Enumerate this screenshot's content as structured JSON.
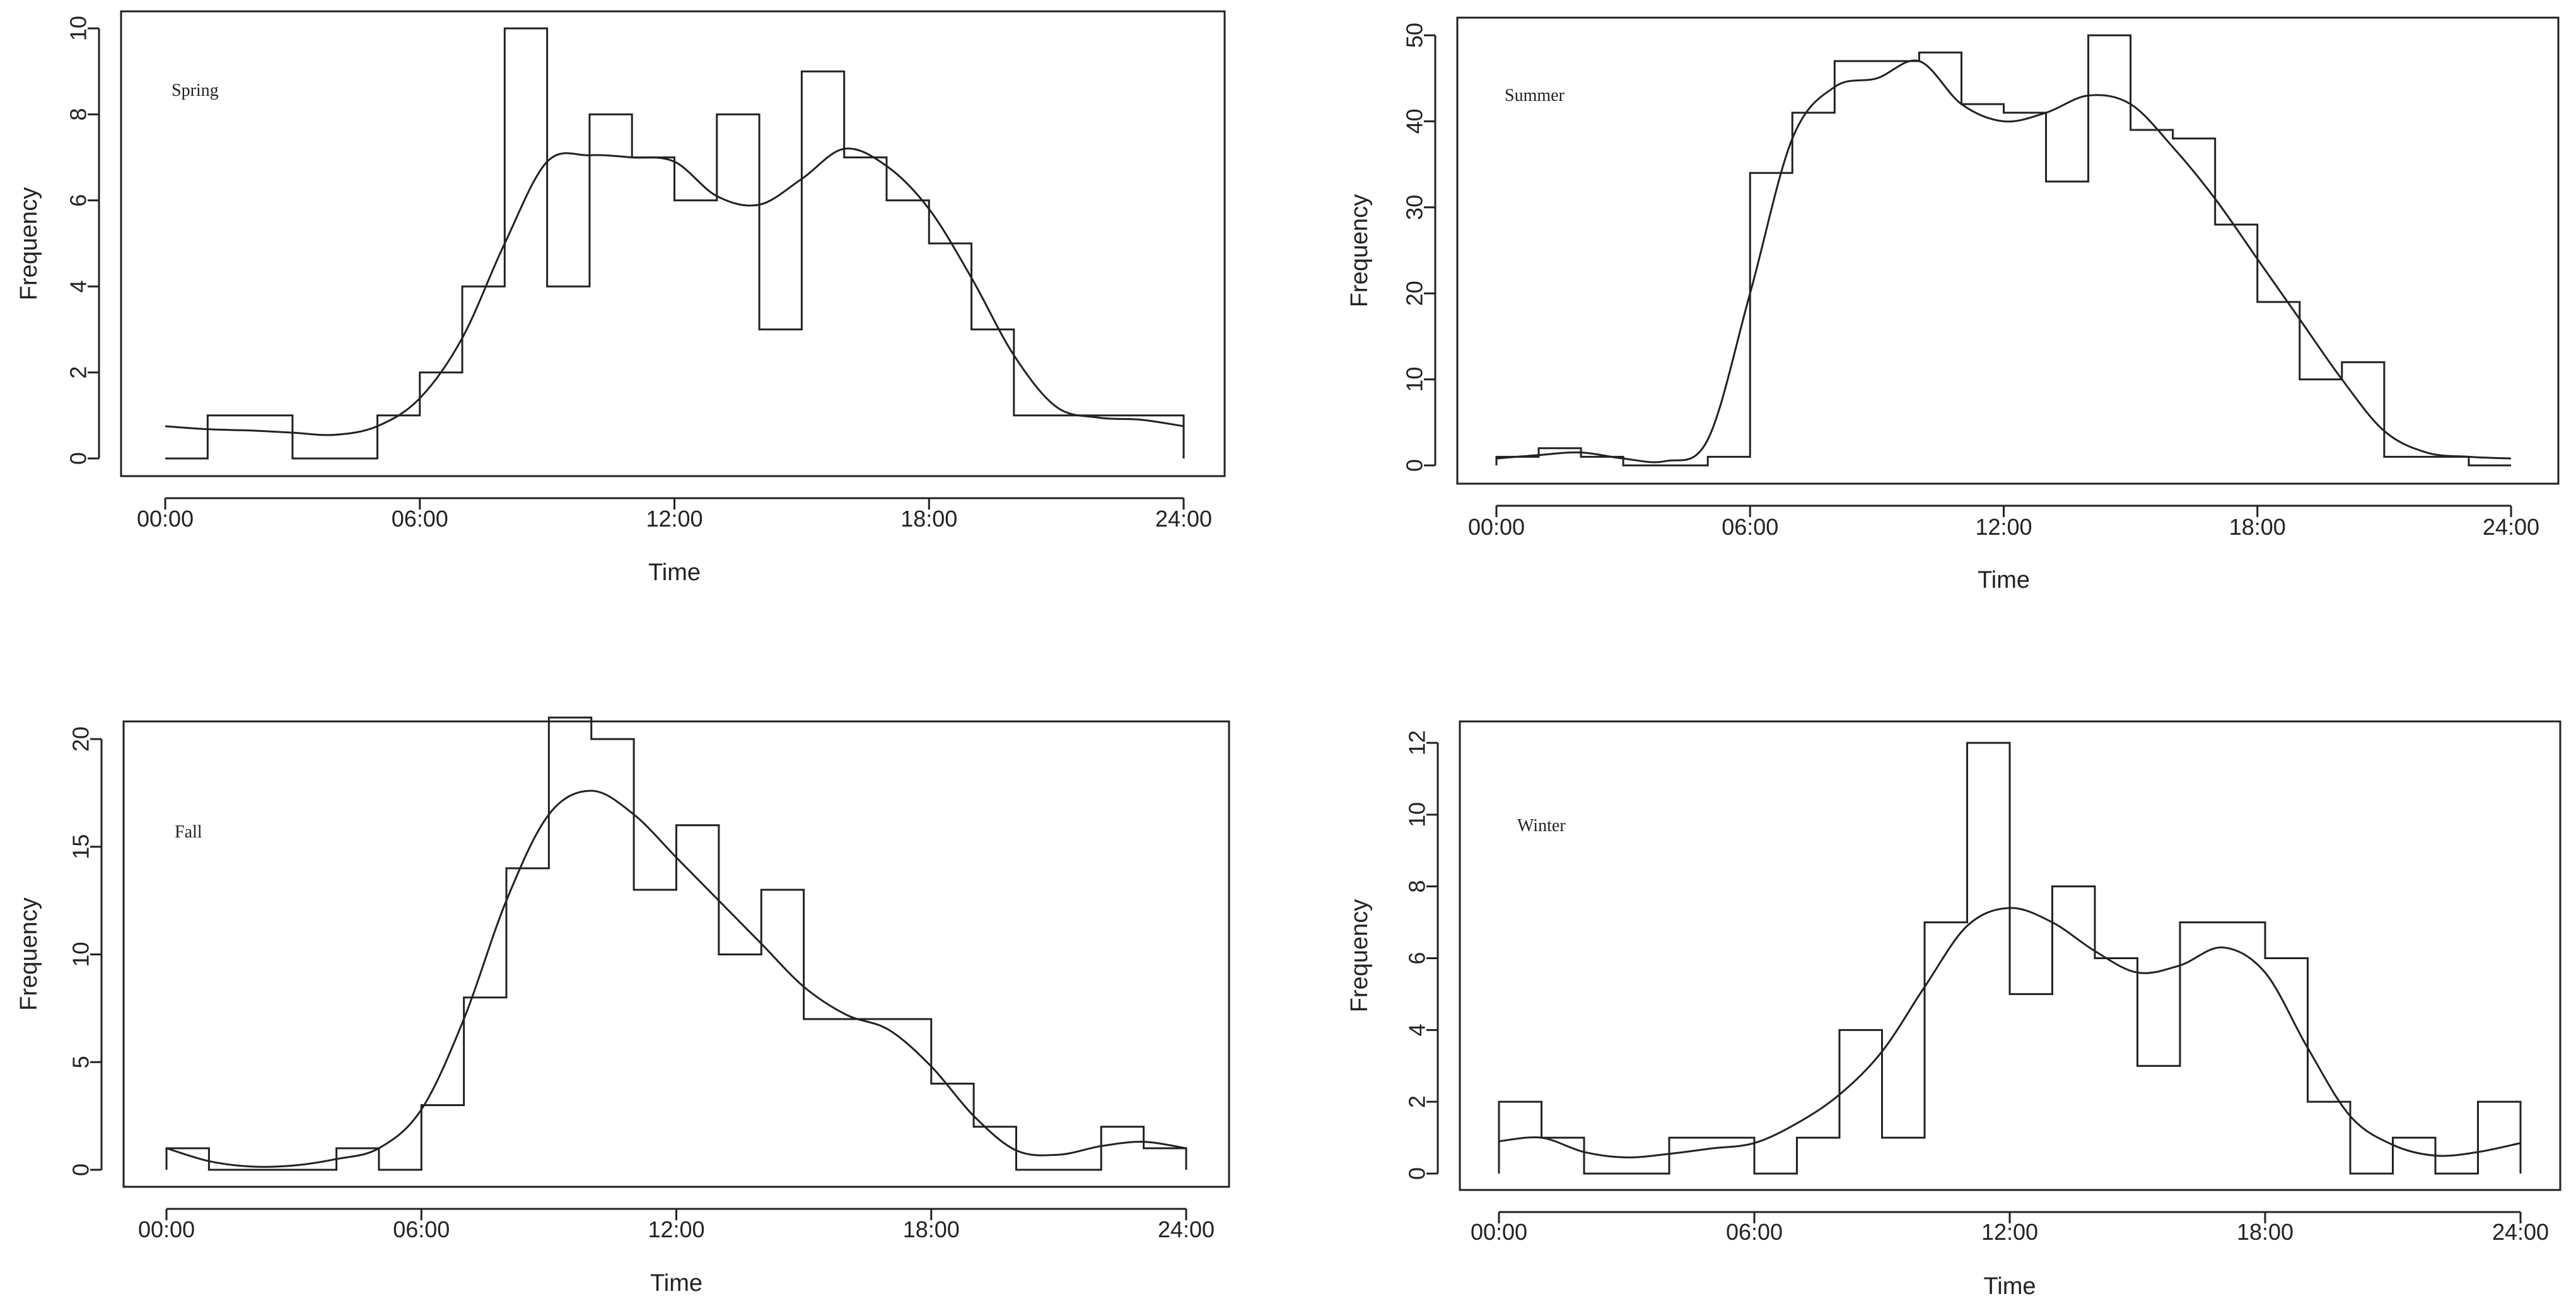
{
  "chart_data": [
    {
      "type": "histogram-with-density",
      "title": "Spring",
      "xlabel": "Time",
      "ylabel": "Frequency",
      "xticks": [
        "00:00",
        "06:00",
        "12:00",
        "18:00",
        "24:00"
      ],
      "yticks": [
        0,
        2,
        4,
        6,
        8,
        10
      ],
      "ylim": [
        0,
        10
      ],
      "bins_hours": [
        0,
        1,
        2,
        3,
        4,
        5,
        6,
        7,
        8,
        9,
        10,
        11,
        12,
        13,
        14,
        15,
        16,
        17,
        18,
        19,
        20,
        21,
        22,
        23
      ],
      "counts": [
        0,
        1,
        1,
        0,
        0,
        1,
        2,
        4,
        10,
        4,
        8,
        7,
        6,
        8,
        3,
        9,
        7,
        6,
        5,
        3,
        1,
        1,
        1,
        1
      ],
      "density_curve": [
        [
          0,
          0.75
        ],
        [
          1,
          0.68
        ],
        [
          2,
          0.65
        ],
        [
          3,
          0.6
        ],
        [
          4,
          0.55
        ],
        [
          5,
          0.75
        ],
        [
          6,
          1.4
        ],
        [
          7,
          2.8
        ],
        [
          8,
          5.0
        ],
        [
          9,
          6.9
        ],
        [
          10,
          7.05
        ],
        [
          11,
          7.0
        ],
        [
          12,
          6.9
        ],
        [
          13,
          6.1
        ],
        [
          14,
          5.9
        ],
        [
          15,
          6.5
        ],
        [
          16,
          7.2
        ],
        [
          17,
          6.8
        ],
        [
          18,
          5.8
        ],
        [
          19,
          4.2
        ],
        [
          20,
          2.4
        ],
        [
          21,
          1.2
        ],
        [
          22,
          0.95
        ],
        [
          23,
          0.9
        ],
        [
          24,
          0.75
        ]
      ]
    },
    {
      "type": "histogram-with-density",
      "title": "Summer",
      "xlabel": "Time",
      "ylabel": "Frequency",
      "xticks": [
        "00:00",
        "06:00",
        "12:00",
        "18:00",
        "24:00"
      ],
      "yticks": [
        0,
        10,
        20,
        30,
        40,
        50
      ],
      "ylim": [
        0,
        50
      ],
      "bins_hours": [
        0,
        1,
        2,
        3,
        4,
        5,
        6,
        7,
        8,
        9,
        10,
        11,
        12,
        13,
        14,
        15,
        16,
        17,
        18,
        19,
        20,
        21,
        22,
        23
      ],
      "counts": [
        1,
        2,
        1,
        0,
        0,
        1,
        34,
        41,
        47,
        47,
        48,
        42,
        41,
        33,
        50,
        39,
        38,
        28,
        19,
        10,
        12,
        1,
        1,
        0
      ],
      "density_curve": [
        [
          0,
          0.8
        ],
        [
          1,
          1.2
        ],
        [
          2,
          1.5
        ],
        [
          3,
          0.8
        ],
        [
          4,
          0.5
        ],
        [
          5,
          3
        ],
        [
          6,
          20
        ],
        [
          7,
          38
        ],
        [
          8,
          44
        ],
        [
          9,
          45
        ],
        [
          10,
          47
        ],
        [
          11,
          42
        ],
        [
          12,
          40
        ],
        [
          13,
          41
        ],
        [
          14,
          43
        ],
        [
          15,
          42
        ],
        [
          16,
          37
        ],
        [
          17,
          31
        ],
        [
          18,
          24
        ],
        [
          19,
          17
        ],
        [
          20,
          10
        ],
        [
          21,
          4
        ],
        [
          22,
          1.5
        ],
        [
          23,
          1
        ],
        [
          24,
          0.8
        ]
      ]
    },
    {
      "type": "histogram-with-density",
      "title": "Fall",
      "xlabel": "Time",
      "ylabel": "Frequency",
      "xticks": [
        "00:00",
        "06:00",
        "12:00",
        "18:00",
        "24:00"
      ],
      "yticks": [
        0,
        5,
        10,
        15,
        20
      ],
      "ylim": [
        0,
        21
      ],
      "bins_hours": [
        0,
        1,
        2,
        3,
        4,
        5,
        6,
        7,
        8,
        9,
        10,
        11,
        12,
        13,
        14,
        15,
        16,
        17,
        18,
        19,
        20,
        21,
        22,
        23
      ],
      "counts": [
        1,
        0,
        0,
        0,
        1,
        0,
        3,
        8,
        14,
        21,
        20,
        13,
        16,
        10,
        13,
        7,
        7,
        7,
        4,
        2,
        0,
        0,
        2,
        1
      ],
      "density_curve": [
        [
          0,
          1
        ],
        [
          1,
          0.4
        ],
        [
          2,
          0.15
        ],
        [
          3,
          0.2
        ],
        [
          4,
          0.5
        ],
        [
          5,
          1.0
        ],
        [
          6,
          2.8
        ],
        [
          7,
          7.0
        ],
        [
          8,
          12.5
        ],
        [
          9,
          16.5
        ],
        [
          10,
          17.6
        ],
        [
          11,
          16.5
        ],
        [
          12,
          14.5
        ],
        [
          13,
          12.5
        ],
        [
          14,
          10.5
        ],
        [
          15,
          8.5
        ],
        [
          16,
          7.2
        ],
        [
          17,
          6.5
        ],
        [
          18,
          4.8
        ],
        [
          19,
          2.5
        ],
        [
          20,
          0.9
        ],
        [
          21,
          0.7
        ],
        [
          22,
          1.1
        ],
        [
          23,
          1.3
        ],
        [
          24,
          1.0
        ]
      ]
    },
    {
      "type": "histogram-with-density",
      "title": "Winter",
      "xlabel": "Time",
      "ylabel": "Frequency",
      "xticks": [
        "00:00",
        "06:00",
        "12:00",
        "18:00",
        "24:00"
      ],
      "yticks": [
        0,
        2,
        4,
        6,
        8,
        10,
        12
      ],
      "ylim": [
        0,
        12
      ],
      "bins_hours": [
        0,
        1,
        2,
        3,
        4,
        5,
        6,
        7,
        8,
        9,
        10,
        11,
        12,
        13,
        14,
        15,
        16,
        17,
        18,
        19,
        20,
        21,
        22,
        23
      ],
      "counts": [
        2,
        1,
        0,
        0,
        1,
        1,
        0,
        1,
        4,
        1,
        7,
        12,
        5,
        8,
        6,
        3,
        7,
        7,
        6,
        2,
        0,
        1,
        0,
        2
      ],
      "density_curve": [
        [
          0,
          0.9
        ],
        [
          1,
          1.0
        ],
        [
          2,
          0.6
        ],
        [
          3,
          0.45
        ],
        [
          4,
          0.55
        ],
        [
          5,
          0.7
        ],
        [
          6,
          0.85
        ],
        [
          7,
          1.4
        ],
        [
          8,
          2.2
        ],
        [
          9,
          3.4
        ],
        [
          10,
          5.2
        ],
        [
          11,
          6.9
        ],
        [
          12,
          7.4
        ],
        [
          13,
          7.0
        ],
        [
          14,
          6.2
        ],
        [
          15,
          5.6
        ],
        [
          16,
          5.8
        ],
        [
          17,
          6.3
        ],
        [
          18,
          5.6
        ],
        [
          19,
          3.5
        ],
        [
          20,
          1.6
        ],
        [
          21,
          0.8
        ],
        [
          22,
          0.5
        ],
        [
          23,
          0.6
        ],
        [
          24,
          0.85
        ]
      ]
    }
  ]
}
